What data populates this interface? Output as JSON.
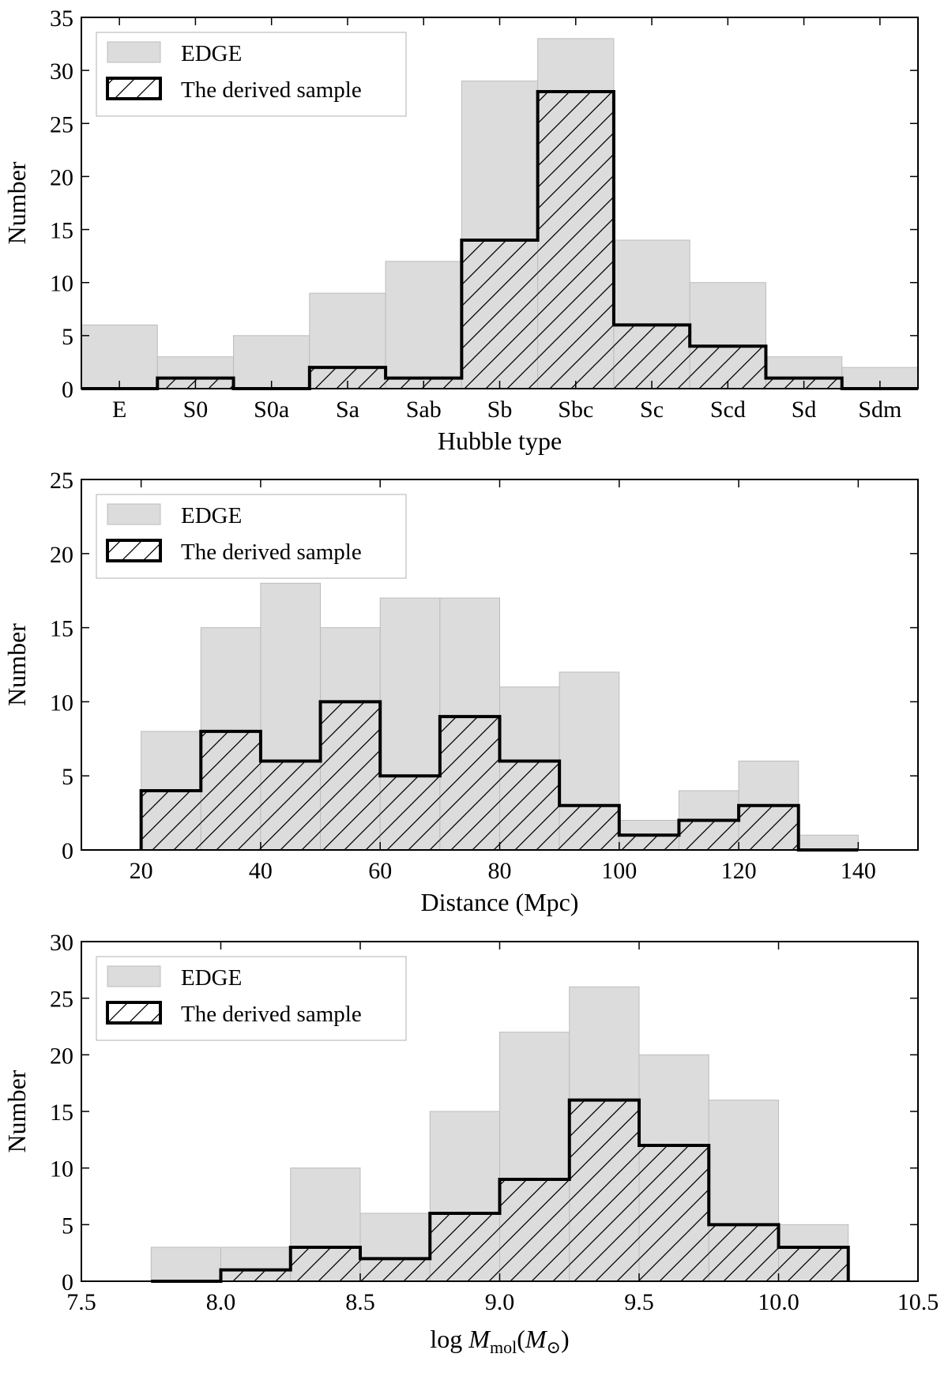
{
  "chart_data": [
    {
      "type": "histogram",
      "id": "hubble",
      "xlabel": "Hubble type",
      "ylabel": "Number",
      "xlim": [
        -0.5,
        10.5
      ],
      "ylim": [
        0,
        35
      ],
      "yticks": [
        0,
        5,
        10,
        15,
        20,
        25,
        30,
        35
      ],
      "xticks": [
        0,
        1,
        2,
        3,
        4,
        5,
        6,
        7,
        8,
        9,
        10
      ],
      "xtick_labels": [
        "E",
        "S0",
        "S0a",
        "Sa",
        "Sab",
        "Sb",
        "Sbc",
        "Sc",
        "Scd",
        "Sd",
        "Sdm"
      ],
      "bin_edges": [
        -0.5,
        0.5,
        1.5,
        2.5,
        3.5,
        4.5,
        5.5,
        6.5,
        7.5,
        8.5,
        9.5,
        10.5
      ],
      "series": [
        {
          "name": "EDGE",
          "style": "filled",
          "values": [
            6,
            3,
            5,
            9,
            12,
            29,
            33,
            14,
            10,
            3,
            2
          ]
        },
        {
          "name": "The derived sample",
          "style": "step-hatched",
          "values": [
            0,
            1,
            0,
            2,
            1,
            14,
            28,
            6,
            4,
            1,
            0
          ]
        }
      ],
      "legend": {
        "position": "top-left",
        "entries": [
          "EDGE",
          "The derived sample"
        ]
      }
    },
    {
      "type": "histogram",
      "id": "distance",
      "xlabel": "Distance (Mpc)",
      "ylabel": "Number",
      "xlim": [
        10,
        150
      ],
      "ylim": [
        0,
        25
      ],
      "yticks": [
        0,
        5,
        10,
        15,
        20,
        25
      ],
      "xticks": [
        20,
        40,
        60,
        80,
        100,
        120,
        140
      ],
      "xtick_labels": [
        "20",
        "40",
        "60",
        "80",
        "100",
        "120",
        "140"
      ],
      "bin_edges": [
        20,
        30,
        40,
        50,
        60,
        70,
        80,
        90,
        100,
        110,
        120,
        130,
        140
      ],
      "series": [
        {
          "name": "EDGE",
          "style": "filled",
          "values": [
            8,
            15,
            18,
            15,
            17,
            17,
            11,
            12,
            2,
            4,
            6,
            1
          ]
        },
        {
          "name": "The derived sample",
          "style": "step-hatched",
          "values": [
            4,
            8,
            6,
            10,
            5,
            9,
            6,
            3,
            1,
            2,
            3,
            0
          ]
        }
      ],
      "legend": {
        "position": "top-left",
        "entries": [
          "EDGE",
          "The derived sample"
        ]
      }
    },
    {
      "type": "histogram",
      "id": "mmol",
      "xlabel": "log M_mol(M_⊙)",
      "xlabel_parts": {
        "prefix": "log ",
        "symbol": "M",
        "subscript": "mol",
        "open": "(",
        "inner_symbol": "M",
        "inner_subscript": "⊙",
        "close": ")"
      },
      "ylabel": "Number",
      "xlim": [
        7.5,
        10.5
      ],
      "ylim": [
        0,
        30
      ],
      "yticks": [
        0,
        5,
        10,
        15,
        20,
        25,
        30
      ],
      "xticks": [
        7.5,
        8.0,
        8.5,
        9.0,
        9.5,
        10.0,
        10.5
      ],
      "xtick_labels": [
        "7.5",
        "8.0",
        "8.5",
        "9.0",
        "9.5",
        "10.0",
        "10.5"
      ],
      "bin_edges": [
        7.75,
        8.0,
        8.25,
        8.5,
        8.75,
        9.0,
        9.25,
        9.5,
        9.75,
        10.0,
        10.25
      ],
      "series": [
        {
          "name": "EDGE",
          "style": "filled",
          "values": [
            3,
            3,
            10,
            6,
            15,
            22,
            26,
            20,
            16,
            5
          ]
        },
        {
          "name": "The derived sample",
          "style": "step-hatched",
          "values": [
            0,
            1,
            3,
            2,
            6,
            9,
            16,
            12,
            5,
            3
          ]
        }
      ],
      "legend": {
        "position": "top-left",
        "entries": [
          "EDGE",
          "The derived sample"
        ]
      }
    }
  ]
}
